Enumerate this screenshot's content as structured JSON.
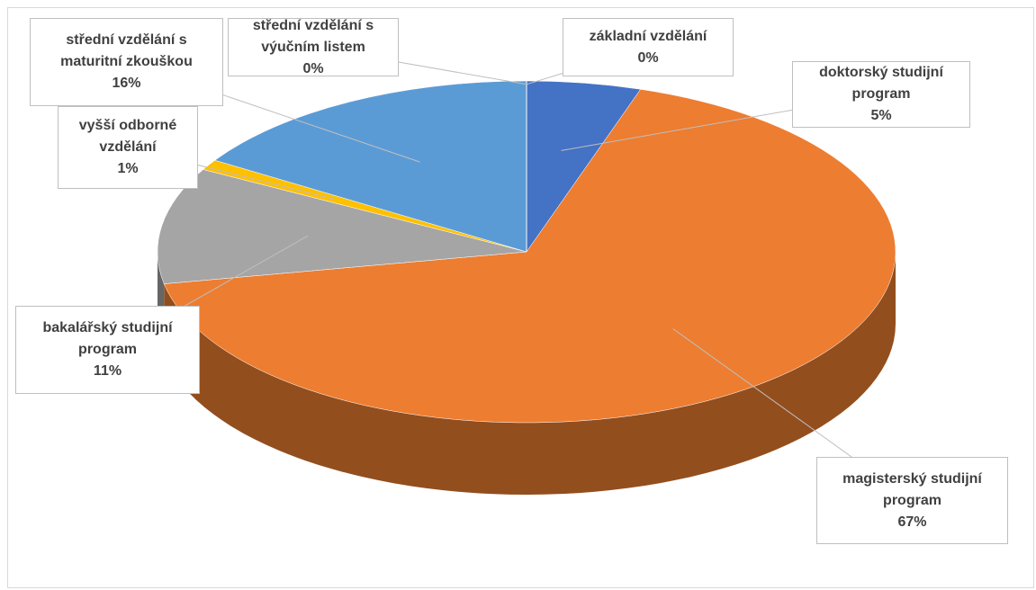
{
  "chart_data": {
    "type": "pie3d",
    "categories": [
      "doktorský studijní program",
      "magisterský studijní program",
      "bakalářský studijní program",
      "vyšší odborné vzdělání",
      "střední vzdělání s maturitní zkouškou",
      "střední vzdělání s výučním listem",
      "základní vzdělání"
    ],
    "values": [
      5,
      67,
      11,
      1,
      16,
      0,
      0
    ],
    "value_labels": [
      "5%",
      "67%",
      "11%",
      "1%",
      "16%",
      "0%",
      "0%"
    ],
    "colors": [
      "#4472c4",
      "#ed7d31",
      "#a5a5a5",
      "#ffc000",
      "#5b9bd5",
      "#70ad47",
      "#264478"
    ]
  }
}
